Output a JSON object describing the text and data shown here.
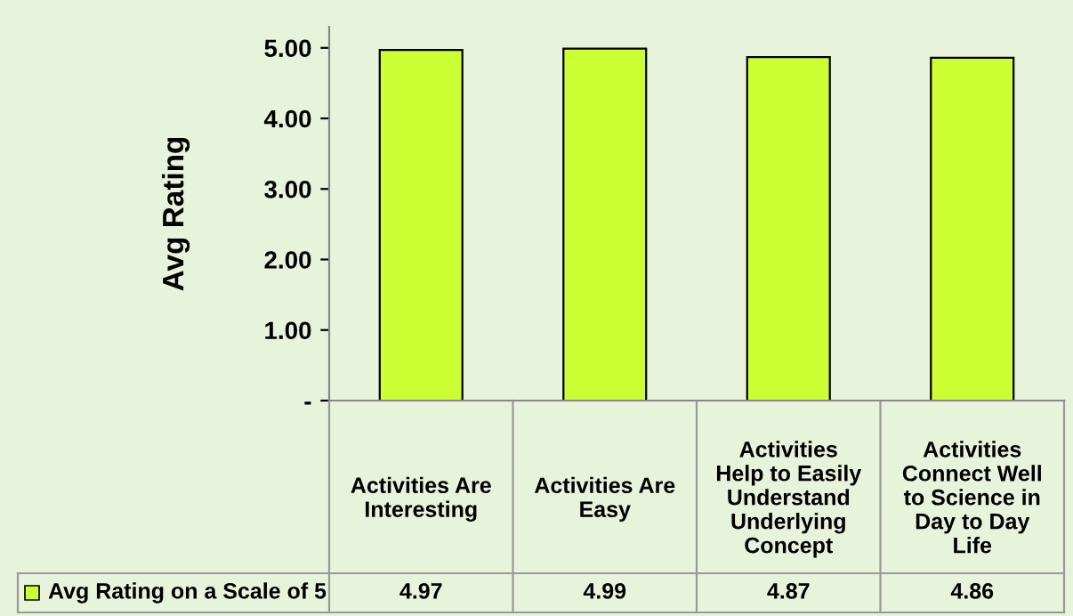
{
  "chart_data": {
    "type": "bar",
    "ylabel": "Avg Rating",
    "categories": [
      "Activities Are\nInteresting",
      "Activities Are\nEasy",
      "Activities\nHelp to Easily\nUnderstand\nUnderlying\nConcept",
      "Activities\nConnect Well\nto Science in\nDay to Day\nLife"
    ],
    "series": [
      {
        "name": "Avg Rating on a Scale of 5",
        "color": "#ccff33",
        "values": [
          4.97,
          4.99,
          4.87,
          4.86
        ]
      }
    ],
    "ylim": [
      0,
      5.3
    ],
    "yticks": [
      {
        "value": 0,
        "label": "-"
      },
      {
        "value": 1,
        "label": "1.00"
      },
      {
        "value": 2,
        "label": "2.00"
      },
      {
        "value": 3,
        "label": "3.00"
      },
      {
        "value": 4,
        "label": "4.00"
      },
      {
        "value": 5,
        "label": "5.00"
      }
    ],
    "grid": false,
    "data_labels": true
  }
}
